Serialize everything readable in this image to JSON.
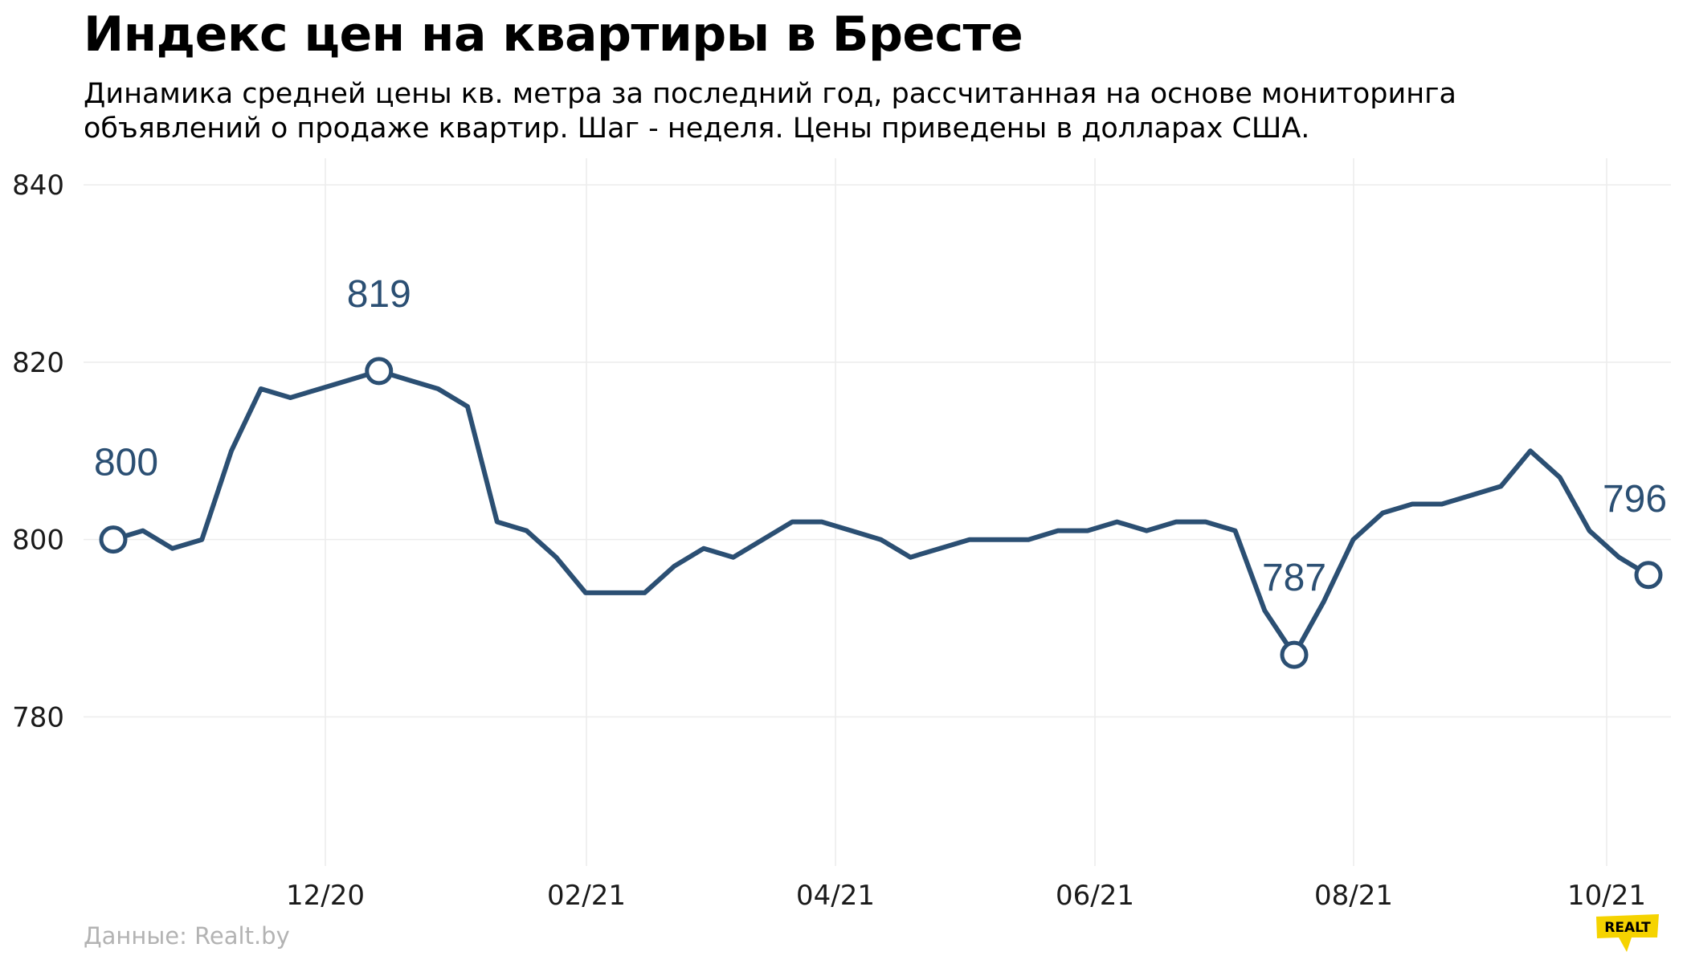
{
  "title": "Индекс цен на квартиры в Бресте",
  "subtitle_line1": "Динамика средней цены кв. метра за последний год, рассчитанная на основе мониторинга",
  "subtitle_line2": "объявлений о продаже квартир. Шаг - неделя. Цены приведены в долларах США.",
  "source": "Данные: Realt.by",
  "logo": {
    "text": "REALT",
    "color": "#f5d300"
  },
  "colors": {
    "line": "#2b4f73",
    "grid": "#ececec",
    "marker_fill": "#ffffff"
  },
  "chart_data": {
    "type": "line",
    "title": "Индекс цен на квартиры в Бресте",
    "xlabel": "",
    "ylabel": "",
    "ylim": [
      765,
      843
    ],
    "yticks": [
      780,
      800,
      820,
      840
    ],
    "xticks": [
      "12/20",
      "02/21",
      "04/21",
      "06/21",
      "08/21",
      "10/21"
    ],
    "grid": true,
    "series": [
      {
        "values": [
          800,
          801,
          799,
          800,
          810,
          817,
          816,
          817,
          818,
          819,
          818,
          817,
          815,
          802,
          801,
          798,
          794,
          794,
          794,
          797,
          799,
          798,
          800,
          802,
          802,
          801,
          800,
          798,
          799,
          800,
          800,
          800,
          801,
          801,
          802,
          801,
          802,
          802,
          801,
          792,
          787,
          793,
          800,
          803,
          804,
          804,
          805,
          806,
          810,
          807,
          801,
          798,
          796
        ]
      }
    ],
    "highlighted": [
      {
        "index": 0,
        "label": "800"
      },
      {
        "index": 9,
        "label": "819"
      },
      {
        "index": 40,
        "label": "787"
      },
      {
        "index": 52,
        "label": "796"
      }
    ]
  }
}
